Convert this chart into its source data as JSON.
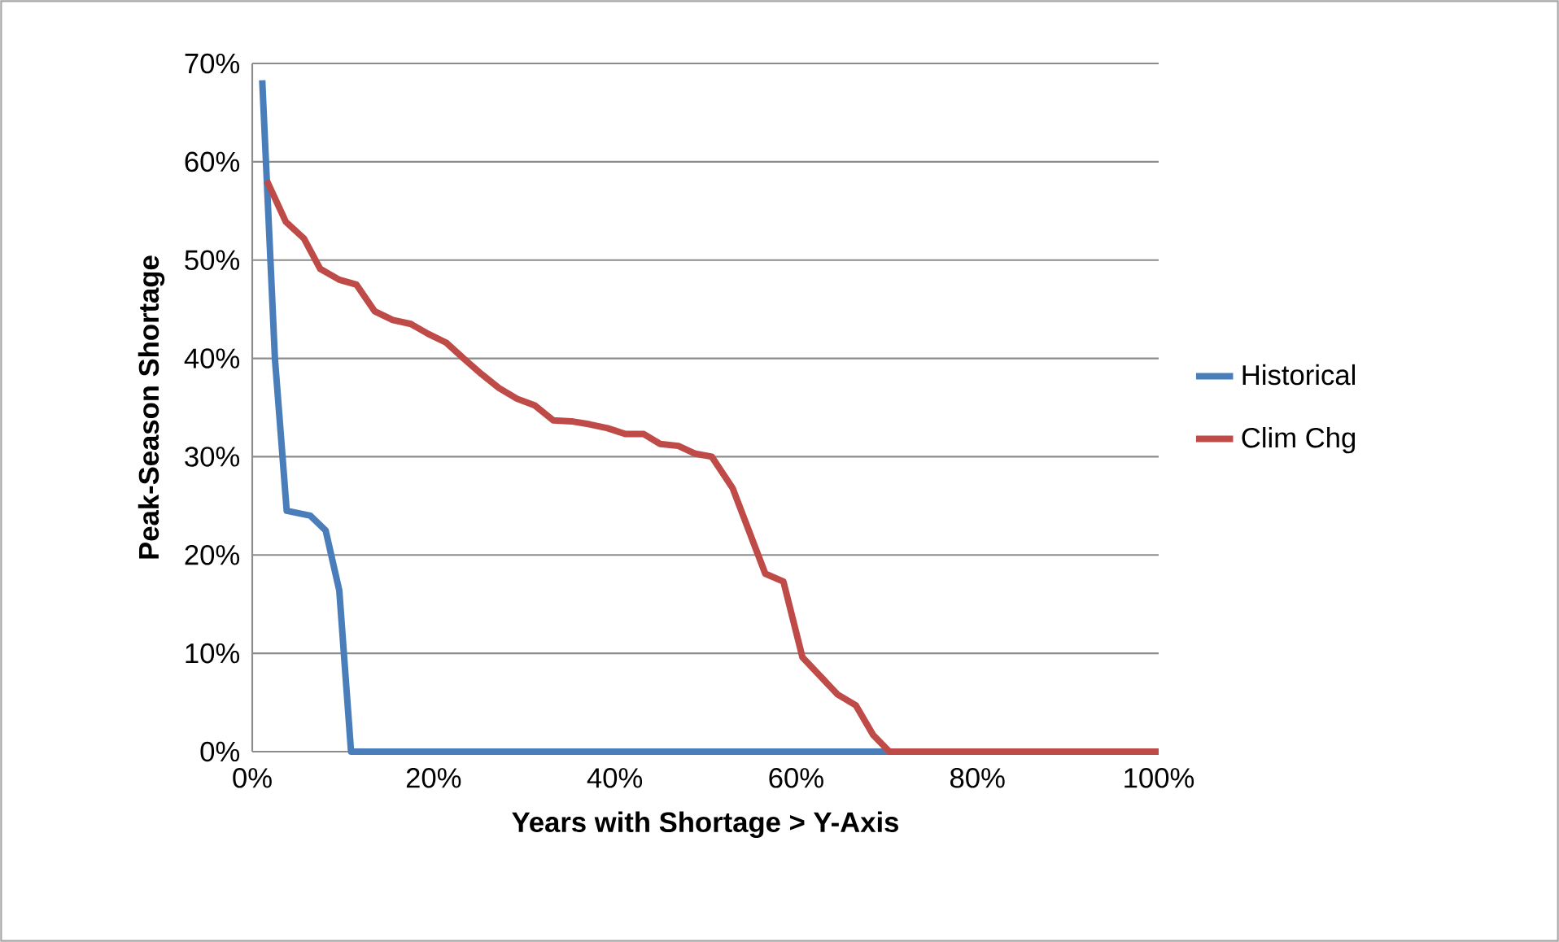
{
  "chart_data": {
    "type": "line",
    "xlabel": "Years with Shortage > Y-Axis",
    "ylabel": "Peak-Season Shortage",
    "xlim": [
      0,
      100
    ],
    "ylim": [
      0,
      70
    ],
    "xticks": [
      {
        "value": 0,
        "label": "0%"
      },
      {
        "value": 20,
        "label": "20%"
      },
      {
        "value": 40,
        "label": "40%"
      },
      {
        "value": 60,
        "label": "60%"
      },
      {
        "value": 80,
        "label": "80%"
      },
      {
        "value": 100,
        "label": "100%"
      }
    ],
    "yticks": [
      {
        "value": 0,
        "label": "0%"
      },
      {
        "value": 10,
        "label": "10%"
      },
      {
        "value": 20,
        "label": "20%"
      },
      {
        "value": 30,
        "label": "30%"
      },
      {
        "value": 40,
        "label": "40%"
      },
      {
        "value": 50,
        "label": "50%"
      },
      {
        "value": 60,
        "label": "60%"
      },
      {
        "value": 70,
        "label": "70%"
      }
    ],
    "grid": "y",
    "legend": "right",
    "marker": "none",
    "line_style": "solid",
    "series": [
      {
        "name": "Historical",
        "color": "#4a7ebb",
        "x": [
          1.1,
          2.5,
          3.8,
          6.4,
          8.1,
          9.6,
          10.9,
          100
        ],
        "values": [
          68.3,
          40,
          24.5,
          24.0,
          22.5,
          16.4,
          0,
          0
        ]
      },
      {
        "name": "Clim Chg",
        "color": "#be4b48",
        "x": [
          1.6,
          3.7,
          5.7,
          7.5,
          9.6,
          11.5,
          13.5,
          15.5,
          17.5,
          19.4,
          21.4,
          23.3,
          25.3,
          27.2,
          29.2,
          31.2,
          33.2,
          35.2,
          37.2,
          39.2,
          41.2,
          43.2,
          45.0,
          47.0,
          48.9,
          50.7,
          53.0,
          56.6,
          58.6,
          60.7,
          64.6,
          66.6,
          68.5,
          70.3,
          100
        ],
        "values": [
          58.1,
          53.9,
          52.2,
          49.1,
          48.0,
          47.5,
          44.8,
          43.9,
          43.5,
          42.5,
          41.6,
          40.0,
          38.4,
          37.0,
          35.9,
          35.2,
          33.7,
          33.6,
          33.3,
          32.9,
          32.3,
          32.3,
          31.3,
          31.1,
          30.3,
          30.0,
          26.8,
          18.1,
          17.3,
          9.6,
          5.8,
          4.7,
          1.7,
          0,
          0
        ]
      }
    ]
  }
}
